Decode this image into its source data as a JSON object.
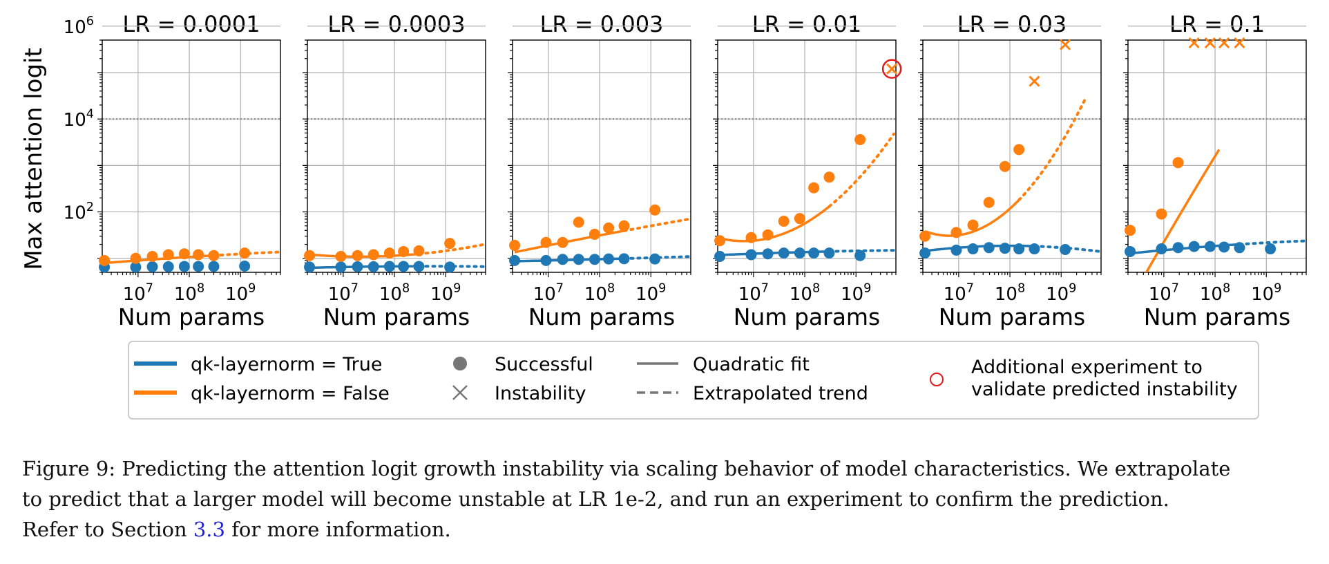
{
  "shared": {
    "ylabel": "Max attention logit",
    "xlabel": "Num params",
    "x_tick_labels": [
      [
        "10",
        "7"
      ],
      [
        "10",
        "8"
      ],
      [
        "10",
        "9"
      ]
    ],
    "y_tick_labels": [
      [
        "10",
        "2"
      ],
      [
        "10",
        "4"
      ],
      [
        "10",
        "6"
      ]
    ],
    "threshold_value": 10000,
    "colors": {
      "blue": "#1f77b4",
      "orange": "#ff7f0e",
      "red": "#e31a1c",
      "grid": "#b0b0b0",
      "threshold": "#888888"
    },
    "x_scale": "log",
    "y_scale": "log",
    "xlim": [
      2000000,
      6000000000
    ],
    "ylim": [
      5,
      500000
    ]
  },
  "legend": {
    "blue_label": "qk-layernorm = True",
    "orange_label": "qk-layernorm = False",
    "successful_label": "Successful",
    "instability_label": "Instability",
    "quadratic_label": "Quadratic fit",
    "extrapolated_label": "Extrapolated trend",
    "additional_line1": "Additional experiment to",
    "additional_line2": "validate predicted instability"
  },
  "caption": {
    "line1": "Figure 9: Predicting the attention logit growth instability via scaling behavior of model characteristics. We extrapolate",
    "line2": "to predict that a larger model will become unstable at LR 1e-2, and run an experiment to confirm the prediction.",
    "line3_before": "Refer to Section ",
    "line3_ref": "3.3",
    "line3_after": " for more information."
  },
  "chart_data": [
    {
      "type": "scatter",
      "title": "LR = 0.0001",
      "series": [
        {
          "name": "qk-layernorm = True",
          "successful": [
            [
              2200000,
              6.5
            ],
            [
              9000000,
              6.5
            ],
            [
              19000000,
              6.6
            ],
            [
              39000000,
              6.6
            ],
            [
              80000000,
              6.7
            ],
            [
              150000000,
              6.7
            ],
            [
              300000000,
              6.7
            ],
            [
              1200000000,
              6.8
            ]
          ],
          "instability": [],
          "fit_end": 300000000,
          "extrap_end": 6000000000,
          "fit": [
            0.1875,
            -0.012,
            0.0012
          ]
        },
        {
          "name": "qk-layernorm = False",
          "successful": [
            [
              2200000,
              9
            ],
            [
              9000000,
              10
            ],
            [
              19000000,
              11
            ],
            [
              39000000,
              12
            ],
            [
              80000000,
              12.5
            ],
            [
              150000000,
              12
            ],
            [
              300000000,
              11.5
            ],
            [
              1200000000,
              13
            ]
          ],
          "instability": [],
          "fit_end": 300000000,
          "extrap_end": 6000000000,
          "fit": [
            0.9542,
            0.08,
            -0.005
          ]
        }
      ]
    },
    {
      "type": "scatter",
      "title": "LR = 0.0003",
      "series": [
        {
          "name": "qk-layernorm = True",
          "successful": [
            [
              2200000,
              6.5
            ],
            [
              9000000,
              6.5
            ],
            [
              19000000,
              6.6
            ],
            [
              39000000,
              6.6
            ],
            [
              80000000,
              6.7
            ],
            [
              150000000,
              6.7
            ],
            [
              300000000,
              6.7
            ],
            [
              1200000000,
              6.5
            ]
          ],
          "instability": [],
          "fit_end": 300000000,
          "extrap_end": 6000000000,
          "fit": [
            0.8129,
            0.02,
            -0.006
          ]
        },
        {
          "name": "qk-layernorm = False",
          "successful": [
            [
              2200000,
              11.5
            ],
            [
              9000000,
              11
            ],
            [
              19000000,
              11.5
            ],
            [
              39000000,
              12
            ],
            [
              80000000,
              13
            ],
            [
              150000000,
              14
            ],
            [
              300000000,
              14.5
            ],
            [
              1200000000,
              21
            ]
          ],
          "instability": [],
          "fit_end": 300000000,
          "extrap_end": 6000000000,
          "fit": [
            1.0414,
            -0.03,
            0.045
          ]
        }
      ]
    },
    {
      "type": "scatter",
      "title": "LR = 0.003",
      "series": [
        {
          "name": "qk-layernorm = True",
          "successful": [
            [
              2200000,
              9
            ],
            [
              9000000,
              9
            ],
            [
              19000000,
              9.5
            ],
            [
              39000000,
              9.5
            ],
            [
              80000000,
              9.5
            ],
            [
              150000000,
              9.7
            ],
            [
              300000000,
              9.8
            ],
            [
              1200000000,
              9.7
            ]
          ],
          "instability": [],
          "fit_end": 300000000,
          "extrap_end": 6000000000,
          "fit": [
            0.9542,
            0.025,
            0.002
          ]
        },
        {
          "name": "qk-layernorm = False",
          "successful": [
            [
              2200000,
              19
            ],
            [
              9000000,
              22
            ],
            [
              19000000,
              22
            ],
            [
              39000000,
              60
            ],
            [
              80000000,
              33
            ],
            [
              150000000,
              45
            ],
            [
              300000000,
              50
            ],
            [
              1200000000,
              110
            ]
          ],
          "instability": [],
          "fit_end": 300000000,
          "extrap_end": 6000000000,
          "fit": [
            1.2788,
            0.22,
            -0.005
          ]
        }
      ]
    },
    {
      "type": "scatter",
      "title": "LR = 0.01",
      "series": [
        {
          "name": "qk-layernorm = True",
          "successful": [
            [
              2200000,
              11
            ],
            [
              9000000,
              12
            ],
            [
              19000000,
              12.5
            ],
            [
              39000000,
              13
            ],
            [
              80000000,
              13
            ],
            [
              150000000,
              13
            ],
            [
              300000000,
              13
            ],
            [
              1200000000,
              11.5
            ]
          ],
          "instability": [],
          "fit_end": 300000000,
          "extrap_end": 6000000000,
          "fit": [
            1.1,
            0.04,
            -0.005
          ]
        },
        {
          "name": "qk-layernorm = False",
          "successful": [
            [
              2200000,
              24
            ],
            [
              9000000,
              28
            ],
            [
              19000000,
              32
            ],
            [
              39000000,
              63
            ],
            [
              80000000,
              72
            ],
            [
              150000000,
              330
            ],
            [
              300000000,
              560
            ],
            [
              1200000000,
              3600
            ]
          ],
          "instability": [
            [
              5000000000,
              120000
            ]
          ],
          "fit_end": 300000000,
          "extrap_end": 5500000000,
          "fit": [
            1.38,
            0.1,
            0.27
          ]
        }
      ]
    },
    {
      "type": "scatter",
      "title": "LR = 0.03",
      "series": [
        {
          "name": "qk-layernorm = True",
          "successful": [
            [
              2200000,
              13
            ],
            [
              9000000,
              15
            ],
            [
              19000000,
              16
            ],
            [
              39000000,
              17
            ],
            [
              80000000,
              16.5
            ],
            [
              150000000,
              16
            ],
            [
              300000000,
              16
            ],
            [
              1200000000,
              15.5
            ]
          ],
          "instability": [],
          "fit_end": 300000000,
          "extrap_end": 5500000000,
          "fit": [
            1.2304,
            0.08,
            -0.04
          ]
        },
        {
          "name": "qk-layernorm = False",
          "successful": [
            [
              2200000,
              30
            ],
            [
              9000000,
              36
            ],
            [
              19000000,
              52
            ],
            [
              39000000,
              160
            ],
            [
              80000000,
              950
            ],
            [
              150000000,
              2200
            ]
          ],
          "instability": [
            [
              300000000,
              65000
            ],
            [
              1200000000,
              400000
            ]
          ],
          "fit_end": 150000000,
          "extrap_end": 3000000000,
          "fit": [
            1.5,
            0.15,
            0.42
          ]
        }
      ]
    },
    {
      "type": "scatter",
      "title": "LR = 0.1",
      "series": [
        {
          "name": "qk-layernorm = True",
          "successful": [
            [
              2200000,
              14
            ],
            [
              9000000,
              16
            ],
            [
              19000000,
              17
            ],
            [
              39000000,
              18
            ],
            [
              80000000,
              18
            ],
            [
              150000000,
              17.5
            ],
            [
              300000000,
              17
            ],
            [
              1200000000,
              16
            ]
          ],
          "instability": [],
          "fit_end": 300000000,
          "extrap_end": 6000000000,
          "fit": [
            1.1761,
            0.1,
            -0.01
          ]
        },
        {
          "name": "qk-layernorm = False",
          "successful": [
            [
              2200000,
              40
            ],
            [
              9000000,
              90
            ],
            [
              19000000,
              1150
            ]
          ],
          "instability": [
            [
              39000000,
              900000
            ],
            [
              80000000,
              1300000
            ],
            [
              150000000,
              3000000
            ],
            [
              300000000,
              3000000
            ]
          ],
          "fit_end": 120000000,
          "extrap_end": 120000000,
          "fit": [
            1.35,
            1.9,
            -0.05
          ]
        }
      ]
    }
  ]
}
